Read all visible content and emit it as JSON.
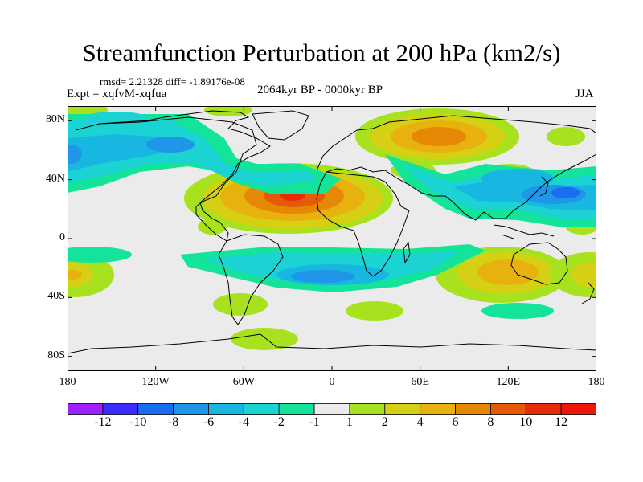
{
  "title": "Streamfunction Perturbation at 200 hPa (km2/s)",
  "stats": "rmsd= 2.21328  diff= -1.89176e-08",
  "experiment": "Expt = xqfvM-xqfua",
  "period": "2064kyr BP - 0000kyr BP",
  "season": "JJA",
  "map": {
    "projection": "cylindrical equidistant",
    "lon_range": [
      -180,
      180
    ],
    "lat_range": [
      -90,
      90
    ],
    "y_ticks": [
      {
        "lat": 80,
        "label": "80N"
      },
      {
        "lat": 40,
        "label": "40N"
      },
      {
        "lat": 0,
        "label": "0"
      },
      {
        "lat": -40,
        "label": "40S"
      },
      {
        "lat": -80,
        "label": "80S"
      }
    ],
    "x_ticks": [
      {
        "lon": -180,
        "label": "180"
      },
      {
        "lon": -120,
        "label": "120W"
      },
      {
        "lon": -60,
        "label": "60W"
      },
      {
        "lon": 0,
        "label": "0"
      },
      {
        "lon": 60,
        "label": "60E"
      },
      {
        "lon": 120,
        "label": "120E"
      },
      {
        "lon": 180,
        "label": "180"
      }
    ],
    "background_color": "#ebebeb",
    "coast_color": "#000000"
  },
  "colorbar": {
    "labels": [
      "-12",
      "-10",
      "-8",
      "-6",
      "-4",
      "-2",
      "-1",
      "1",
      "2",
      "4",
      "6",
      "8",
      "10",
      "12"
    ],
    "colors": [
      "#9f20ff",
      "#3c2bff",
      "#1a6cf0",
      "#1f96e8",
      "#18b7e2",
      "#1cd3d3",
      "#14e49a",
      "#ebebeb",
      "#a8e21e",
      "#d6d014",
      "#e8b10e",
      "#e68806",
      "#e45a06",
      "#e82b04",
      "#ee1606"
    ]
  }
}
